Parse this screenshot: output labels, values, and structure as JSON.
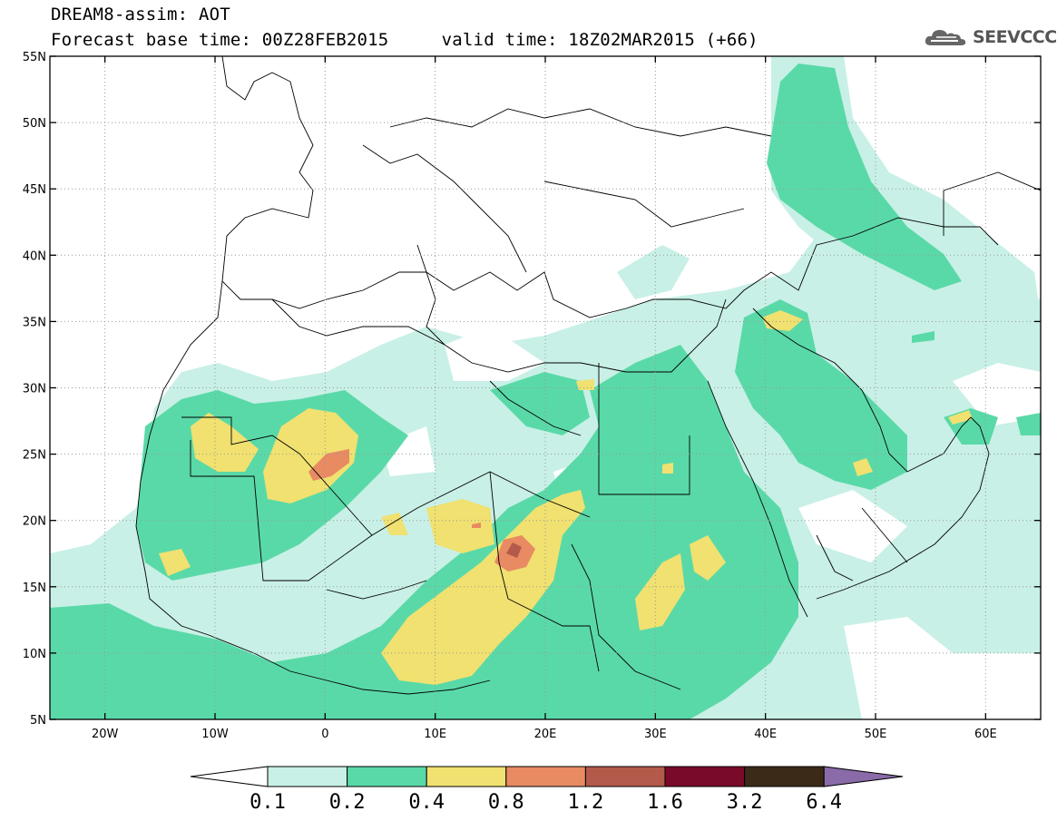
{
  "header": {
    "line1": "DREAM8-assim: AOT",
    "line2": "Forecast base time: 00Z28FEB2015     valid time: 18Z02MAR2015 (+66)"
  },
  "logo": {
    "text": "SEEVCCC",
    "icon": "cloud-icon"
  },
  "map": {
    "variable": "AOT",
    "lat_labels": [
      "55N",
      "50N",
      "45N",
      "40N",
      "35N",
      "30N",
      "25N",
      "20N",
      "15N",
      "10N",
      "5N"
    ],
    "lon_labels": [
      "20W",
      "10W",
      "0",
      "10E",
      "20E",
      "30E",
      "40E",
      "50E",
      "60E"
    ],
    "lat_range": [
      5,
      55
    ],
    "lon_range": [
      -25,
      65
    ],
    "grid": "dotted",
    "colors": {
      "level_0_1": "#c8f0e6",
      "level_0_2": "#5ad9a8",
      "level_0_4": "#f0e170",
      "level_0_8": "#e88a62",
      "level_1_2": "#b35a4a",
      "level_1_6": "#7a0a2a",
      "level_3_2": "#3c2a18",
      "level_6_4": "#8a6aa8"
    }
  },
  "colorbar": {
    "labels": [
      "0.1",
      "0.2",
      "0.4",
      "0.8",
      "1.2",
      "1.6",
      "3.2",
      "6.4"
    ],
    "colors": [
      "#c8f0e6",
      "#5ad9a8",
      "#f0e170",
      "#e88a62",
      "#b35a4a",
      "#7a0a2a",
      "#3c2a18"
    ],
    "over_color": "#8a6aa8",
    "under_color": "#ffffff"
  }
}
